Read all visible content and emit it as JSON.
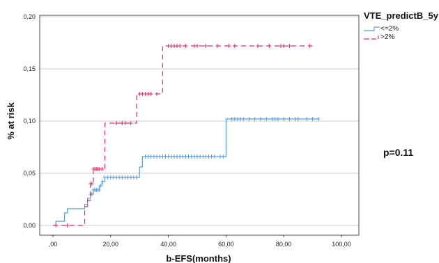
{
  "chart_data": {
    "type": "line",
    "xlabel": "b-EFS(months)",
    "ylabel": "% at risk",
    "xlim": [
      0,
      100
    ],
    "ylim": [
      0,
      0.2
    ],
    "x_ticks": [
      ",00",
      "20,00",
      "40,00",
      "60,00",
      "80,00",
      "100,00"
    ],
    "y_ticks": [
      "0,00",
      "0,05",
      "0,10",
      "0,15",
      "0,20"
    ],
    "grid": "horizontal",
    "legend": {
      "title": "VTE_predictB_5y",
      "placement": "top-right",
      "entries": [
        "<=2%",
        ">2%"
      ]
    },
    "annotation": "p=0.11",
    "series": [
      {
        "name": "<=2%",
        "color": "#5b9bd5",
        "style": "solid",
        "steps": [
          [
            0,
            0.0
          ],
          [
            1,
            0.004
          ],
          [
            4,
            0.012
          ],
          [
            5,
            0.016
          ],
          [
            10,
            0.016
          ],
          [
            11,
            0.02
          ],
          [
            12,
            0.026
          ],
          [
            13,
            0.03
          ],
          [
            14,
            0.034
          ],
          [
            16,
            0.038
          ],
          [
            17,
            0.042
          ],
          [
            18,
            0.046
          ],
          [
            30,
            0.056
          ],
          [
            31,
            0.066
          ],
          [
            60,
            0.102
          ],
          [
            92,
            0.102
          ]
        ],
        "censored": [
          [
            13,
            0.03
          ],
          [
            13.5,
            0.03
          ],
          [
            14,
            0.034
          ],
          [
            14.5,
            0.034
          ],
          [
            15,
            0.034
          ],
          [
            15.5,
            0.034
          ],
          [
            16,
            0.034
          ],
          [
            16.5,
            0.038
          ],
          [
            17.2,
            0.042
          ],
          [
            18,
            0.046
          ],
          [
            19,
            0.046
          ],
          [
            20,
            0.046
          ],
          [
            21,
            0.046
          ],
          [
            22,
            0.046
          ],
          [
            23,
            0.046
          ],
          [
            24,
            0.046
          ],
          [
            25,
            0.046
          ],
          [
            26,
            0.046
          ],
          [
            27,
            0.046
          ],
          [
            28,
            0.046
          ],
          [
            29,
            0.046
          ],
          [
            32,
            0.066
          ],
          [
            33,
            0.066
          ],
          [
            34,
            0.066
          ],
          [
            35,
            0.066
          ],
          [
            36,
            0.066
          ],
          [
            37,
            0.066
          ],
          [
            38,
            0.066
          ],
          [
            39,
            0.066
          ],
          [
            40,
            0.066
          ],
          [
            41,
            0.066
          ],
          [
            42,
            0.066
          ],
          [
            43,
            0.066
          ],
          [
            44,
            0.066
          ],
          [
            45,
            0.066
          ],
          [
            46,
            0.066
          ],
          [
            47,
            0.066
          ],
          [
            48,
            0.066
          ],
          [
            49,
            0.066
          ],
          [
            50,
            0.066
          ],
          [
            51,
            0.066
          ],
          [
            52,
            0.066
          ],
          [
            53,
            0.066
          ],
          [
            54,
            0.066
          ],
          [
            55,
            0.066
          ],
          [
            56,
            0.066
          ],
          [
            58,
            0.066
          ],
          [
            59,
            0.066
          ],
          [
            62,
            0.102
          ],
          [
            63,
            0.102
          ],
          [
            64,
            0.102
          ],
          [
            65,
            0.102
          ],
          [
            66,
            0.102
          ],
          [
            68,
            0.102
          ],
          [
            70,
            0.102
          ],
          [
            72,
            0.102
          ],
          [
            74,
            0.102
          ],
          [
            76,
            0.102
          ],
          [
            77,
            0.102
          ],
          [
            78,
            0.102
          ],
          [
            80,
            0.102
          ],
          [
            82,
            0.102
          ],
          [
            84,
            0.102
          ],
          [
            85,
            0.102
          ],
          [
            88,
            0.102
          ],
          [
            90,
            0.102
          ],
          [
            92,
            0.102
          ]
        ]
      },
      {
        "name": ">2%",
        "color": "#d6336c",
        "style": "dashed",
        "steps": [
          [
            0,
            0.0
          ],
          [
            10,
            0.0
          ],
          [
            11,
            0.018
          ],
          [
            12,
            0.024
          ],
          [
            13,
            0.04
          ],
          [
            14,
            0.054
          ],
          [
            18,
            0.098
          ],
          [
            28,
            0.098
          ],
          [
            29,
            0.126
          ],
          [
            37,
            0.126
          ],
          [
            38,
            0.172
          ],
          [
            90,
            0.172
          ]
        ],
        "censored": [
          [
            1,
            0.0
          ],
          [
            5,
            0.0
          ],
          [
            13,
            0.04
          ],
          [
            13.5,
            0.04
          ],
          [
            14,
            0.054
          ],
          [
            14.5,
            0.054
          ],
          [
            15,
            0.054
          ],
          [
            15.5,
            0.054
          ],
          [
            16,
            0.054
          ],
          [
            17,
            0.054
          ],
          [
            22,
            0.098
          ],
          [
            24,
            0.098
          ],
          [
            25,
            0.098
          ],
          [
            27,
            0.098
          ],
          [
            30,
            0.126
          ],
          [
            31,
            0.126
          ],
          [
            32,
            0.126
          ],
          [
            33,
            0.126
          ],
          [
            34,
            0.126
          ],
          [
            36,
            0.126
          ],
          [
            40,
            0.172
          ],
          [
            41,
            0.172
          ],
          [
            42,
            0.172
          ],
          [
            43,
            0.172
          ],
          [
            44,
            0.172
          ],
          [
            46,
            0.172
          ],
          [
            49,
            0.172
          ],
          [
            50,
            0.172
          ],
          [
            53,
            0.172
          ],
          [
            57,
            0.172
          ],
          [
            61,
            0.172
          ],
          [
            63,
            0.172
          ],
          [
            71,
            0.172
          ],
          [
            75,
            0.172
          ],
          [
            79,
            0.172
          ],
          [
            80,
            0.172
          ],
          [
            82,
            0.172
          ],
          [
            89,
            0.172
          ]
        ]
      }
    ]
  }
}
